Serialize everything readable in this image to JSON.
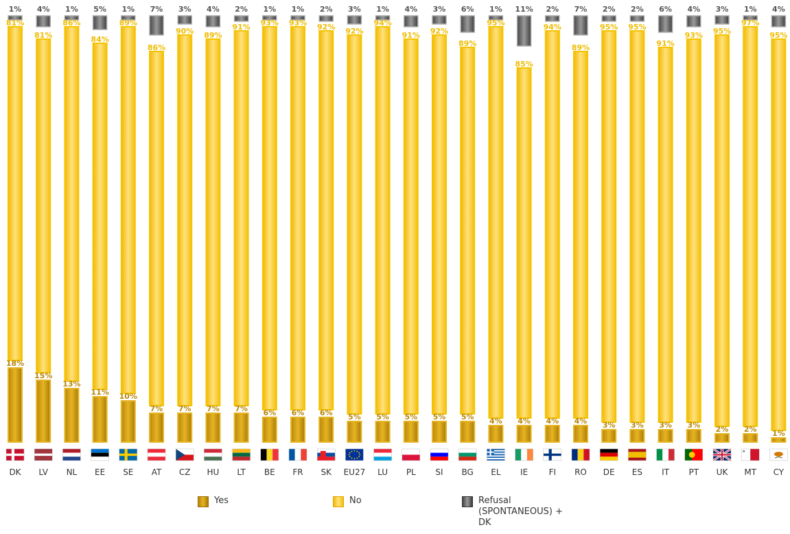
{
  "chart_data": {
    "type": "bar",
    "stacked": true,
    "categories": [
      "DK",
      "LV",
      "NL",
      "EE",
      "SE",
      "AT",
      "CZ",
      "HU",
      "LT",
      "BE",
      "FR",
      "SK",
      "EU27",
      "LU",
      "PL",
      "SI",
      "BG",
      "EL",
      "IE",
      "FI",
      "RO",
      "DE",
      "ES",
      "IT",
      "PT",
      "UK",
      "MT",
      "CY"
    ],
    "series": [
      {
        "name": "Yes",
        "values": [
          18,
          15,
          13,
          11,
          10,
          7,
          7,
          7,
          7,
          6,
          6,
          6,
          5,
          5,
          5,
          5,
          5,
          4,
          4,
          4,
          4,
          3,
          3,
          3,
          3,
          2,
          2,
          1
        ]
      },
      {
        "name": "No",
        "values": [
          81,
          81,
          86,
          84,
          89,
          86,
          90,
          89,
          91,
          93,
          93,
          92,
          92,
          94,
          91,
          92,
          89,
          95,
          85,
          94,
          89,
          95,
          95,
          91,
          93,
          95,
          97,
          95
        ]
      },
      {
        "name": "Refusal\n(SPONTANEOUS) +\nDK",
        "values": [
          1,
          4,
          1,
          5,
          1,
          7,
          3,
          4,
          2,
          1,
          1,
          2,
          3,
          1,
          4,
          3,
          6,
          1,
          11,
          2,
          7,
          2,
          2,
          6,
          4,
          3,
          1,
          4
        ]
      }
    ],
    "value_suffix": "%",
    "legend_position": "bottom",
    "colors": {
      "yes": "#D9A20A",
      "no": "#F7C21B",
      "refusal": "#666666"
    }
  },
  "legend": {
    "yes_label": "Yes",
    "no_label": "No",
    "refusal_label": "Refusal\n(SPONTANEOUS) +\nDK"
  }
}
